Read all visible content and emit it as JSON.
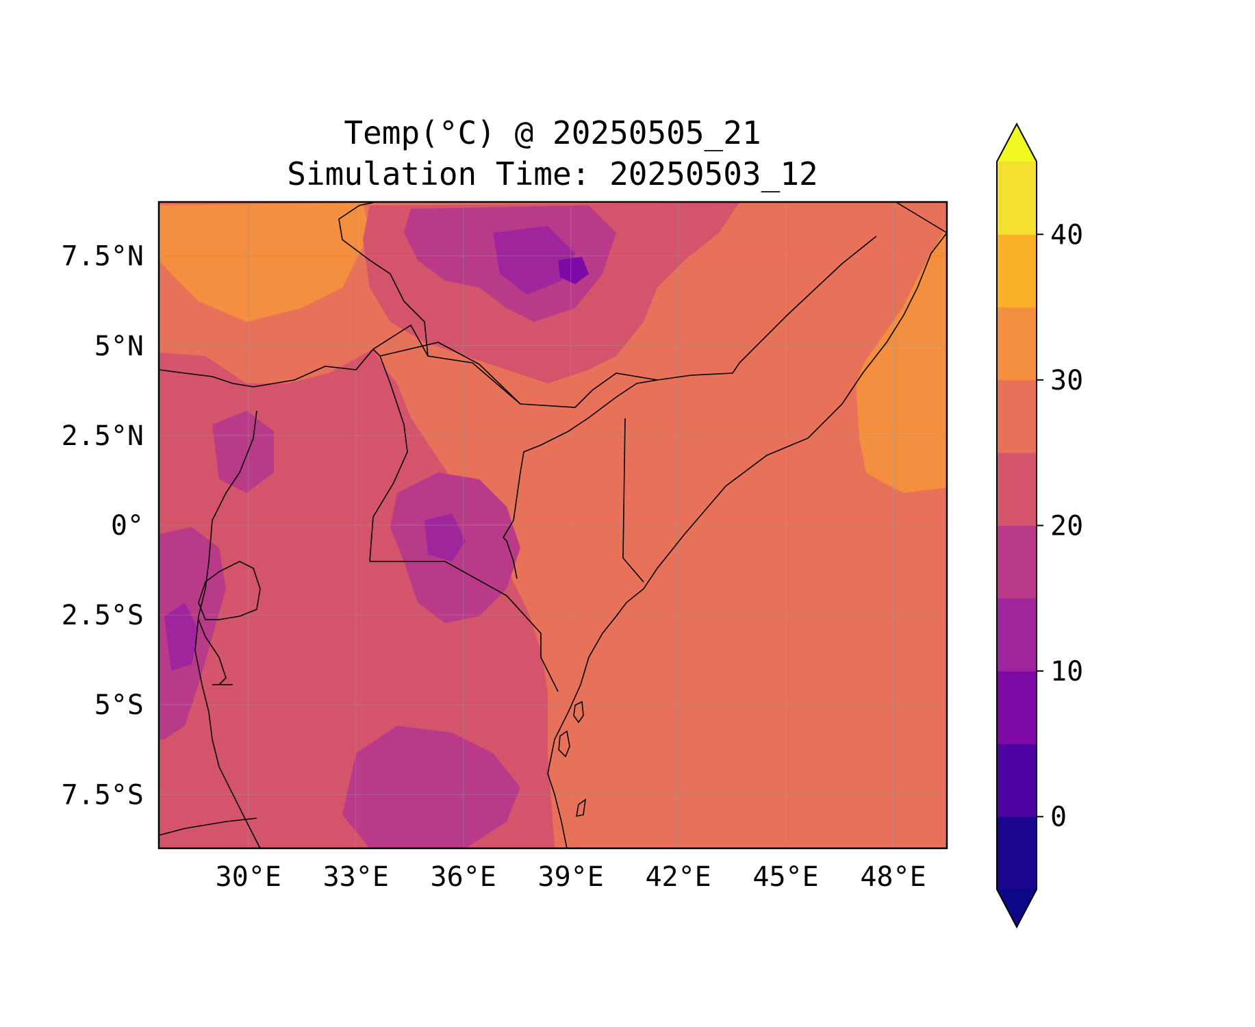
{
  "title_line1": "Temp(°C) @ 20250505_21",
  "title_line2": "Simulation Time: 20250503_12",
  "map": {
    "extent": {
      "lon": [
        27.5,
        49.5
      ],
      "lat": [
        -9.0,
        9.0
      ]
    },
    "gridlines": true,
    "colors": {
      "t30_35": "#f38f3f",
      "t25_30": "#e8715a",
      "t20_25": "#d4546c",
      "t15_20": "#b93a89",
      "t10_15": "#9e259c",
      "t5_10": "#7e0aa6"
    }
  },
  "axes": {
    "x_ticks": [
      {
        "value": 30,
        "label": "30°E"
      },
      {
        "value": 33,
        "label": "33°E"
      },
      {
        "value": 36,
        "label": "36°E"
      },
      {
        "value": 39,
        "label": "39°E"
      },
      {
        "value": 42,
        "label": "42°E"
      },
      {
        "value": 45,
        "label": "45°E"
      },
      {
        "value": 48,
        "label": "48°E"
      }
    ],
    "y_ticks": [
      {
        "value": 7.5,
        "label": "7.5°N"
      },
      {
        "value": 5,
        "label": "5°N"
      },
      {
        "value": 2.5,
        "label": "2.5°N"
      },
      {
        "value": 0,
        "label": "0°"
      },
      {
        "value": -2.5,
        "label": "2.5°S"
      },
      {
        "value": -5,
        "label": "5°S"
      },
      {
        "value": -7.5,
        "label": "7.5°S"
      }
    ]
  },
  "colorbar": {
    "levels": [
      -5,
      0,
      5,
      10,
      15,
      20,
      25,
      30,
      35,
      40,
      45
    ],
    "colors": [
      "#1d068f",
      "#4b02a1",
      "#7e0aa6",
      "#9e259c",
      "#b93a89",
      "#d4546c",
      "#e8715a",
      "#f38f3f",
      "#fbb22a",
      "#f3e030"
    ],
    "under_color": "#0d0887",
    "over_color": "#f0f921",
    "extend": "both",
    "ticks": [
      {
        "value": 0,
        "label": "0"
      },
      {
        "value": 10,
        "label": "10"
      },
      {
        "value": 20,
        "label": "20"
      },
      {
        "value": 30,
        "label": "30"
      },
      {
        "value": 40,
        "label": "40"
      }
    ]
  }
}
